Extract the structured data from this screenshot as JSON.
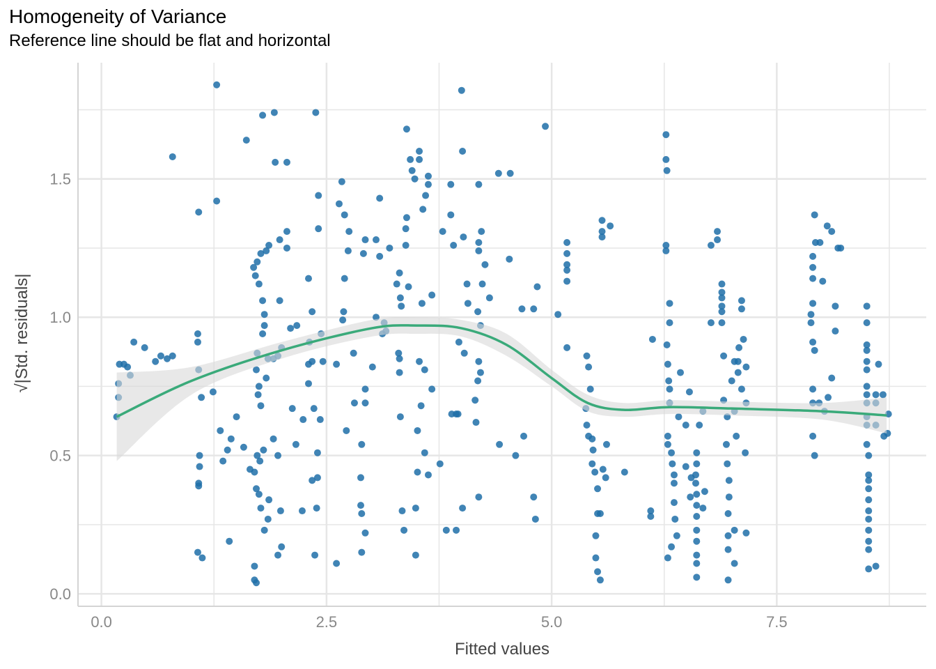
{
  "chart_data": {
    "type": "scatter",
    "title": "Homogeneity of Variance",
    "subtitle": "Reference line should be flat and horizontal",
    "xlabel": "Fitted values",
    "ylabel": "√|Std. residuals|",
    "xlim": [
      -0.26,
      9.16
    ],
    "ylim": [
      -0.045,
      1.92
    ],
    "xticks": [
      {
        "v": 0,
        "label": "0.0"
      },
      {
        "v": 2.5,
        "label": "2.5"
      },
      {
        "v": 5,
        "label": "5.0"
      },
      {
        "v": 7.5,
        "label": "7.5"
      }
    ],
    "yticks": [
      {
        "v": 0,
        "label": "0.0"
      },
      {
        "v": 0.5,
        "label": "0.5"
      },
      {
        "v": 1,
        "label": "1.0"
      },
      {
        "v": 1.5,
        "label": "1.5"
      }
    ],
    "x_minor": [
      1.25,
      3.75,
      6.25,
      8.75
    ],
    "y_minor": [
      0.25,
      0.75,
      1.25,
      1.75
    ],
    "grid": true,
    "colors": {
      "points": "#1f6fa8",
      "smooth": "#3aaa7a",
      "band": "#d9d9d9",
      "grid": "#e6e6e6"
    },
    "points": [
      [
        0.17,
        0.64
      ],
      [
        0.19,
        0.71
      ],
      [
        0.19,
        0.76
      ],
      [
        0.2,
        0.83
      ],
      [
        0.25,
        0.83
      ],
      [
        0.29,
        0.82
      ],
      [
        0.32,
        0.79
      ],
      [
        0.36,
        0.91
      ],
      [
        0.48,
        0.89
      ],
      [
        0.6,
        0.84
      ],
      [
        0.66,
        0.86
      ],
      [
        0.73,
        0.85
      ],
      [
        0.79,
        1.58
      ],
      [
        0.79,
        0.86
      ],
      [
        1.08,
        1.38
      ],
      [
        1.07,
        0.94
      ],
      [
        1.07,
        0.91
      ],
      [
        1.08,
        0.81
      ],
      [
        1.09,
        0.5
      ],
      [
        1.09,
        0.46
      ],
      [
        1.08,
        0.4
      ],
      [
        1.08,
        0.39
      ],
      [
        1.07,
        0.15
      ],
      [
        1.12,
        0.13
      ],
      [
        1.11,
        0.71
      ],
      [
        1.28,
        1.84
      ],
      [
        1.28,
        1.42
      ],
      [
        1.24,
        0.73
      ],
      [
        1.32,
        0.59
      ],
      [
        1.35,
        0.48
      ],
      [
        1.4,
        0.52
      ],
      [
        1.44,
        0.56
      ],
      [
        1.42,
        0.19
      ],
      [
        1.5,
        0.64
      ],
      [
        1.58,
        0.53
      ],
      [
        1.61,
        1.64
      ],
      [
        1.65,
        0.45
      ],
      [
        1.69,
        1.18
      ],
      [
        1.71,
        1.15
      ],
      [
        1.73,
        1.2
      ],
      [
        1.75,
        1.12
      ],
      [
        1.77,
        1.23
      ],
      [
        1.79,
        1.06
      ],
      [
        1.81,
        1.01
      ],
      [
        1.83,
        1.24
      ],
      [
        1.86,
        1.26
      ],
      [
        1.79,
        1.73
      ],
      [
        1.7,
        0.1
      ],
      [
        1.7,
        0.05
      ],
      [
        1.72,
        0.04
      ],
      [
        1.72,
        0.81
      ],
      [
        1.75,
        0.75
      ],
      [
        1.77,
        0.68
      ],
      [
        1.74,
        0.72
      ],
      [
        1.73,
        0.5
      ],
      [
        1.76,
        0.48
      ],
      [
        1.7,
        0.44
      ],
      [
        1.72,
        0.38
      ],
      [
        1.75,
        0.36
      ],
      [
        1.77,
        0.31
      ],
      [
        1.81,
        0.23
      ],
      [
        1.85,
        0.27
      ],
      [
        1.8,
        0.52
      ],
      [
        1.86,
        0.34
      ],
      [
        1.81,
        0.97
      ],
      [
        1.79,
        0.94
      ],
      [
        1.83,
        0.78
      ],
      [
        1.73,
        0.87
      ],
      [
        1.85,
        0.85
      ],
      [
        1.92,
        1.74
      ],
      [
        1.93,
        1.56
      ],
      [
        2.06,
        1.56
      ],
      [
        1.98,
        1.28
      ],
      [
        2.06,
        1.31
      ],
      [
        2.06,
        1.25
      ],
      [
        1.98,
        1.06
      ],
      [
        2.0,
        0.89
      ],
      [
        1.96,
        0.86
      ],
      [
        1.91,
        0.56
      ],
      [
        1.96,
        0.5
      ],
      [
        1.99,
        0.3
      ],
      [
        2.0,
        0.17
      ],
      [
        1.96,
        0.14
      ],
      [
        1.91,
        0.85
      ],
      [
        2.1,
        0.96
      ],
      [
        2.17,
        0.97
      ],
      [
        2.12,
        0.67
      ],
      [
        2.16,
        0.54
      ],
      [
        2.23,
        0.3
      ],
      [
        2.24,
        0.63
      ],
      [
        2.3,
        1.14
      ],
      [
        2.31,
        0.91
      ],
      [
        2.34,
        1.02
      ],
      [
        2.34,
        0.84
      ],
      [
        2.3,
        0.83
      ],
      [
        2.34,
        0.41
      ],
      [
        2.36,
        0.67
      ],
      [
        2.38,
        1.74
      ],
      [
        2.41,
        1.44
      ],
      [
        2.41,
        1.32
      ],
      [
        2.4,
        0.51
      ],
      [
        2.4,
        0.42
      ],
      [
        2.39,
        0.31
      ],
      [
        2.37,
        0.14
      ],
      [
        2.44,
        0.94
      ],
      [
        2.46,
        0.84
      ],
      [
        2.3,
        0.76
      ],
      [
        2.43,
        0.63
      ],
      [
        2.61,
        0.11
      ],
      [
        2.61,
        0.83
      ],
      [
        2.64,
        1.41
      ],
      [
        2.67,
        1.49
      ],
      [
        2.68,
        0.99
      ],
      [
        2.69,
        1.02
      ],
      [
        2.7,
        1.14
      ],
      [
        2.7,
        1.37
      ],
      [
        2.72,
        0.59
      ],
      [
        2.75,
        1.31
      ],
      [
        2.74,
        1.24
      ],
      [
        2.8,
        0.87
      ],
      [
        2.81,
        0.69
      ],
      [
        2.89,
        0.54
      ],
      [
        2.88,
        0.42
      ],
      [
        2.88,
        0.32
      ],
      [
        2.89,
        0.29
      ],
      [
        2.89,
        0.15
      ],
      [
        2.93,
        0.22
      ],
      [
        2.93,
        0.69
      ],
      [
        2.93,
        0.74
      ],
      [
        2.91,
        1.23
      ],
      [
        2.93,
        1.28
      ],
      [
        3.01,
        0.82
      ],
      [
        3.05,
        1.28
      ],
      [
        3.09,
        1.43
      ],
      [
        3.09,
        1.22
      ],
      [
        3.05,
        1.0
      ],
      [
        3.12,
        0.94
      ],
      [
        3.14,
        0.98
      ],
      [
        3.16,
        0.95
      ],
      [
        3.2,
        1.25
      ],
      [
        3.28,
        1.12
      ],
      [
        3.31,
        1.16
      ],
      [
        3.32,
        1.07
      ],
      [
        3.3,
        0.87
      ],
      [
        3.31,
        0.85
      ],
      [
        3.31,
        0.8
      ],
      [
        3.32,
        0.64
      ],
      [
        3.33,
        1.04
      ],
      [
        3.34,
        0.3
      ],
      [
        3.36,
        0.23
      ],
      [
        3.39,
        1.36
      ],
      [
        3.38,
        1.32
      ],
      [
        3.38,
        1.26
      ],
      [
        3.39,
        1.68
      ],
      [
        3.43,
        1.57
      ],
      [
        3.41,
        1.11
      ],
      [
        3.45,
        1.53
      ],
      [
        3.48,
        1.5
      ],
      [
        3.49,
        0.31
      ],
      [
        3.49,
        0.14
      ],
      [
        3.51,
        0.44
      ],
      [
        3.51,
        0.59
      ],
      [
        3.53,
        1.6
      ],
      [
        3.53,
        1.57
      ],
      [
        3.55,
        0.68
      ],
      [
        3.53,
        0.84
      ],
      [
        3.56,
        1.05
      ],
      [
        3.57,
        1.39
      ],
      [
        3.59,
        0.81
      ],
      [
        3.59,
        0.51
      ],
      [
        3.6,
        1.44
      ],
      [
        3.63,
        1.51
      ],
      [
        3.63,
        1.48
      ],
      [
        3.63,
        0.43
      ],
      [
        3.67,
        0.74
      ],
      [
        3.67,
        1.08
      ],
      [
        3.76,
        0.47
      ],
      [
        3.79,
        1.31
      ],
      [
        3.83,
        0.23
      ],
      [
        3.88,
        1.48
      ],
      [
        3.88,
        1.37
      ],
      [
        3.89,
        0.65
      ],
      [
        3.91,
        1.26
      ],
      [
        3.94,
        0.23
      ],
      [
        3.94,
        0.65
      ],
      [
        3.96,
        0.65
      ],
      [
        3.97,
        0.91
      ],
      [
        4.0,
        1.82
      ],
      [
        4.01,
        1.6
      ],
      [
        4.02,
        1.29
      ],
      [
        4.01,
        0.31
      ],
      [
        4.03,
        0.87
      ],
      [
        4.06,
        1.12
      ],
      [
        4.07,
        1.05
      ],
      [
        4.15,
        0.7
      ],
      [
        4.16,
        0.62
      ],
      [
        4.19,
        1.48
      ],
      [
        4.19,
        1.27
      ],
      [
        4.19,
        1.24
      ],
      [
        4.18,
        1.02
      ],
      [
        4.19,
        0.84
      ],
      [
        4.18,
        0.77
      ],
      [
        4.21,
        0.8
      ],
      [
        4.19,
        0.35
      ],
      [
        4.21,
        0.97
      ],
      [
        4.22,
        1.31
      ],
      [
        4.23,
        1.12
      ],
      [
        4.26,
        1.19
      ],
      [
        4.31,
        1.07
      ],
      [
        4.41,
        1.52
      ],
      [
        4.42,
        0.54
      ],
      [
        4.54,
        1.52
      ],
      [
        4.53,
        1.21
      ],
      [
        4.6,
        0.5
      ],
      [
        4.69,
        0.57
      ],
      [
        4.67,
        1.03
      ],
      [
        4.8,
        0.35
      ],
      [
        4.82,
        0.27
      ],
      [
        4.8,
        1.03
      ],
      [
        4.84,
        1.11
      ],
      [
        4.93,
        1.69
      ],
      [
        5.17,
        1.27
      ],
      [
        5.17,
        1.23
      ],
      [
        5.17,
        1.19
      ],
      [
        5.17,
        1.17
      ],
      [
        5.17,
        1.13
      ],
      [
        5.17,
        0.89
      ],
      [
        5.07,
        1.01
      ],
      [
        5.39,
        0.86
      ],
      [
        5.41,
        0.82
      ],
      [
        5.43,
        0.74
      ],
      [
        5.38,
        0.67
      ],
      [
        5.39,
        0.61
      ],
      [
        5.41,
        0.57
      ],
      [
        5.45,
        0.56
      ],
      [
        5.46,
        0.52
      ],
      [
        5.45,
        0.47
      ],
      [
        5.48,
        0.44
      ],
      [
        5.51,
        0.38
      ],
      [
        5.51,
        0.29
      ],
      [
        5.49,
        0.21
      ],
      [
        5.49,
        0.13
      ],
      [
        5.51,
        0.08
      ],
      [
        5.54,
        0.05
      ],
      [
        5.56,
        1.35
      ],
      [
        5.56,
        1.31
      ],
      [
        5.56,
        1.29
      ],
      [
        5.65,
        1.33
      ],
      [
        5.61,
        0.54
      ],
      [
        5.54,
        0.29
      ],
      [
        5.57,
        0.45
      ],
      [
        5.6,
        0.42
      ],
      [
        5.81,
        0.44
      ],
      [
        6.1,
        0.3
      ],
      [
        6.1,
        0.28
      ],
      [
        6.12,
        0.92
      ],
      [
        6.27,
        1.66
      ],
      [
        6.27,
        1.57
      ],
      [
        6.28,
        1.53
      ],
      [
        6.27,
        1.26
      ],
      [
        6.27,
        1.24
      ],
      [
        6.31,
        1.05
      ],
      [
        6.31,
        0.98
      ],
      [
        6.28,
        0.9
      ],
      [
        6.29,
        0.83
      ],
      [
        6.3,
        0.77
      ],
      [
        6.31,
        0.74
      ],
      [
        6.31,
        0.69
      ],
      [
        6.29,
        0.57
      ],
      [
        6.29,
        0.54
      ],
      [
        6.33,
        0.51
      ],
      [
        6.34,
        0.47
      ],
      [
        6.36,
        0.43
      ],
      [
        6.36,
        0.4
      ],
      [
        6.36,
        0.33
      ],
      [
        6.37,
        0.27
      ],
      [
        6.29,
        0.13
      ],
      [
        6.33,
        0.17
      ],
      [
        6.39,
        0.21
      ],
      [
        6.41,
        0.64
      ],
      [
        6.43,
        0.8
      ],
      [
        6.49,
        0.61
      ],
      [
        6.53,
        0.73
      ],
      [
        6.49,
        0.46
      ],
      [
        6.55,
        0.42
      ],
      [
        6.54,
        0.35
      ],
      [
        6.61,
        0.51
      ],
      [
        6.61,
        0.47
      ],
      [
        6.6,
        0.43
      ],
      [
        6.6,
        0.4
      ],
      [
        6.61,
        0.36
      ],
      [
        6.61,
        0.32
      ],
      [
        6.61,
        0.28
      ],
      [
        6.61,
        0.23
      ],
      [
        6.61,
        0.19
      ],
      [
        6.61,
        0.14
      ],
      [
        6.61,
        0.11
      ],
      [
        6.61,
        0.06
      ],
      [
        6.64,
        0.61
      ],
      [
        6.68,
        0.66
      ],
      [
        6.7,
        0.37
      ],
      [
        6.68,
        0.31
      ],
      [
        6.77,
        0.98
      ],
      [
        6.77,
        1.26
      ],
      [
        6.84,
        1.31
      ],
      [
        6.84,
        1.28
      ],
      [
        6.89,
        1.12
      ],
      [
        6.89,
        1.09
      ],
      [
        6.89,
        1.07
      ],
      [
        6.89,
        1.04
      ],
      [
        6.89,
        1.02
      ],
      [
        6.89,
        0.98
      ],
      [
        6.91,
        0.86
      ],
      [
        6.91,
        0.7
      ],
      [
        6.95,
        0.64
      ],
      [
        6.94,
        0.54
      ],
      [
        6.95,
        0.47
      ],
      [
        6.97,
        0.41
      ],
      [
        6.97,
        0.35
      ],
      [
        6.96,
        0.29
      ],
      [
        6.96,
        0.21
      ],
      [
        6.96,
        0.16
      ],
      [
        6.96,
        0.05
      ],
      [
        7.0,
        0.77
      ],
      [
        7.03,
        0.84
      ],
      [
        7.03,
        0.66
      ],
      [
        7.05,
        0.57
      ],
      [
        7.03,
        0.23
      ],
      [
        7.07,
        0.84
      ],
      [
        7.07,
        0.8
      ],
      [
        7.08,
        0.89
      ],
      [
        7.13,
        0.92
      ],
      [
        7.11,
        1.06
      ],
      [
        7.11,
        1.03
      ],
      [
        7.11,
        0.74
      ],
      [
        7.15,
        0.51
      ],
      [
        7.16,
        0.22
      ],
      [
        7.16,
        0.69
      ],
      [
        7.16,
        0.82
      ],
      [
        7.03,
        0.11
      ],
      [
        7.92,
        1.37
      ],
      [
        7.9,
        1.22
      ],
      [
        7.9,
        1.18
      ],
      [
        7.9,
        1.14
      ],
      [
        7.9,
        1.05
      ],
      [
        7.88,
        1.01
      ],
      [
        7.88,
        0.98
      ],
      [
        7.9,
        0.91
      ],
      [
        7.92,
        0.88
      ],
      [
        7.9,
        0.74
      ],
      [
        7.9,
        0.69
      ],
      [
        7.9,
        0.57
      ],
      [
        7.92,
        0.5
      ],
      [
        7.93,
        1.27
      ],
      [
        7.98,
        1.27
      ],
      [
        8.01,
        1.13
      ],
      [
        8.06,
        1.33
      ],
      [
        8.11,
        1.31
      ],
      [
        8.18,
        1.25
      ],
      [
        8.21,
        1.25
      ],
      [
        8.11,
        0.78
      ],
      [
        8.07,
        0.71
      ],
      [
        8.03,
        0.66
      ],
      [
        8.15,
        1.04
      ],
      [
        8.15,
        0.95
      ],
      [
        7.97,
        0.69
      ],
      [
        8.5,
        1.04
      ],
      [
        8.5,
        0.98
      ],
      [
        8.5,
        0.9
      ],
      [
        8.5,
        0.88
      ],
      [
        8.5,
        0.84
      ],
      [
        8.5,
        0.81
      ],
      [
        8.5,
        0.75
      ],
      [
        8.5,
        0.72
      ],
      [
        8.5,
        0.69
      ],
      [
        8.5,
        0.64
      ],
      [
        8.5,
        0.61
      ],
      [
        8.5,
        0.54
      ],
      [
        8.52,
        0.5
      ],
      [
        8.52,
        0.43
      ],
      [
        8.52,
        0.41
      ],
      [
        8.52,
        0.38
      ],
      [
        8.52,
        0.34
      ],
      [
        8.52,
        0.3
      ],
      [
        8.52,
        0.27
      ],
      [
        8.52,
        0.23
      ],
      [
        8.52,
        0.19
      ],
      [
        8.52,
        0.16
      ],
      [
        8.52,
        0.09
      ],
      [
        8.6,
        0.1
      ],
      [
        8.63,
        0.83
      ],
      [
        8.6,
        0.72
      ],
      [
        8.68,
        0.72
      ],
      [
        8.69,
        0.57
      ],
      [
        8.73,
        0.58
      ],
      [
        8.74,
        0.65
      ],
      [
        8.6,
        0.69
      ],
      [
        8.6,
        0.61
      ]
    ],
    "smooth": {
      "x": [
        0.17,
        1.0,
        2.0,
        3.0,
        3.5,
        4.0,
        4.5,
        5.0,
        5.4,
        5.8,
        6.3,
        7.0,
        8.0,
        8.72
      ],
      "y": [
        0.64,
        0.77,
        0.88,
        0.96,
        0.97,
        0.96,
        0.9,
        0.78,
        0.69,
        0.665,
        0.675,
        0.67,
        0.66,
        0.645
      ],
      "lower": [
        0.48,
        0.72,
        0.85,
        0.93,
        0.94,
        0.93,
        0.86,
        0.75,
        0.66,
        0.64,
        0.65,
        0.645,
        0.63,
        0.58
      ],
      "upper": [
        0.8,
        0.82,
        0.91,
        0.99,
        1.0,
        0.99,
        0.94,
        0.81,
        0.72,
        0.69,
        0.7,
        0.695,
        0.69,
        0.71
      ]
    }
  }
}
